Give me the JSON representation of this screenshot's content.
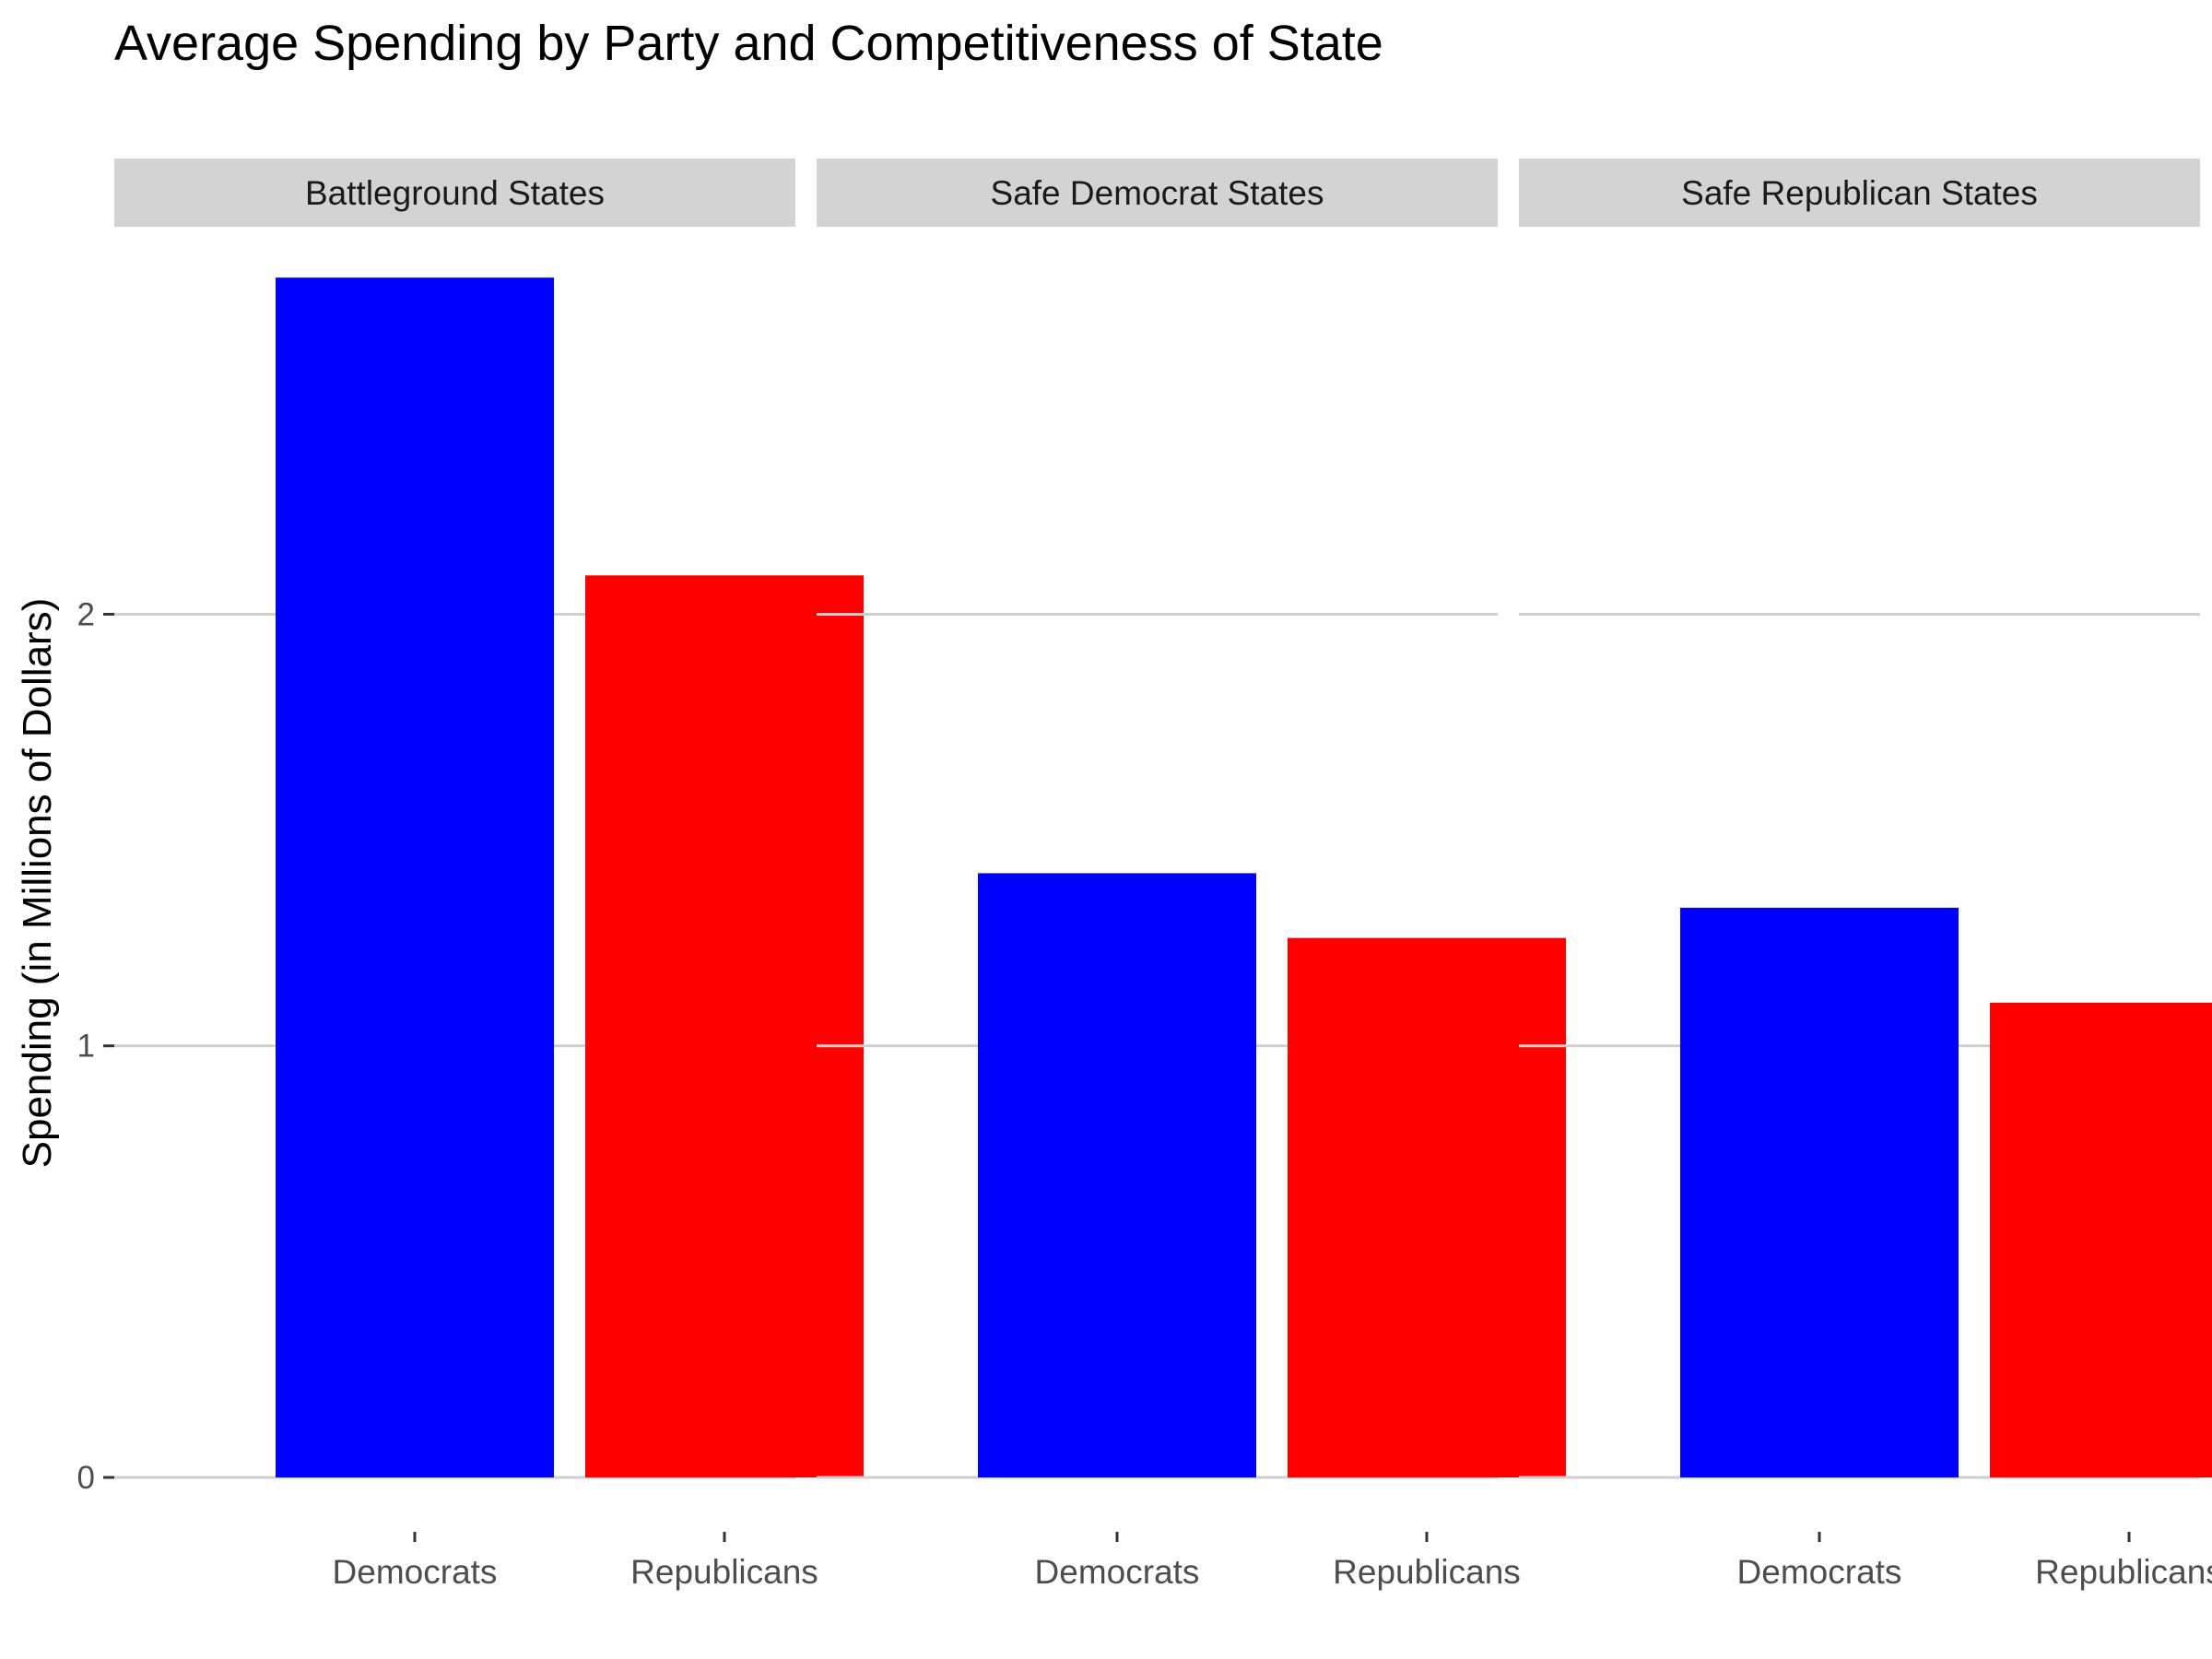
{
  "chart_data": {
    "type": "bar",
    "title": "Average Spending by Party and Competitiveness of State",
    "xlabel": "",
    "ylabel": "Spending (in Millions of Dollars)",
    "ylim": [
      0,
      2.9
    ],
    "y_ticks": [
      0,
      1,
      2
    ],
    "categories": [
      "Democrats",
      "Republicans"
    ],
    "colors": {
      "Democrats": "#0000FF",
      "Republicans": "#FF0000"
    },
    "grid": true,
    "legend": "none",
    "panels": [
      {
        "label": "Battleground States",
        "values": [
          2.78,
          2.09
        ]
      },
      {
        "label": "Safe Democrat States",
        "values": [
          1.4,
          1.25
        ]
      },
      {
        "label": "Safe Republican States",
        "values": [
          1.32,
          1.1
        ]
      }
    ]
  }
}
